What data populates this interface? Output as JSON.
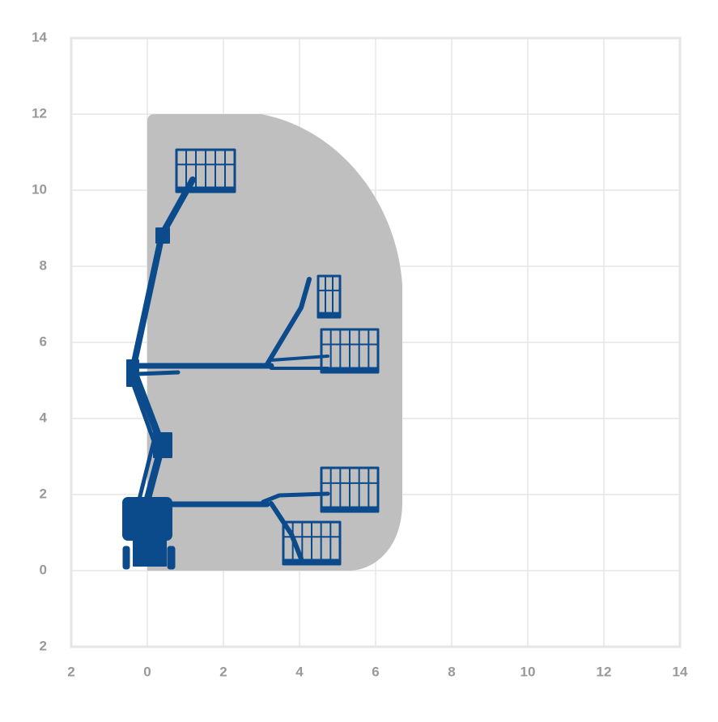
{
  "chart_data": {
    "type": "working-range",
    "xlim": [
      -2,
      14
    ],
    "xticks": [
      {
        "value": -2,
        "label": "2"
      },
      0,
      2,
      4,
      6,
      8,
      10,
      12,
      14
    ],
    "ylim": [
      -2,
      14
    ],
    "yticks": [
      {
        "value": -2,
        "label": "2"
      },
      0,
      2,
      4,
      6,
      8,
      10,
      12,
      14
    ],
    "grid": true,
    "color": "#bfbfbf"
  }
}
